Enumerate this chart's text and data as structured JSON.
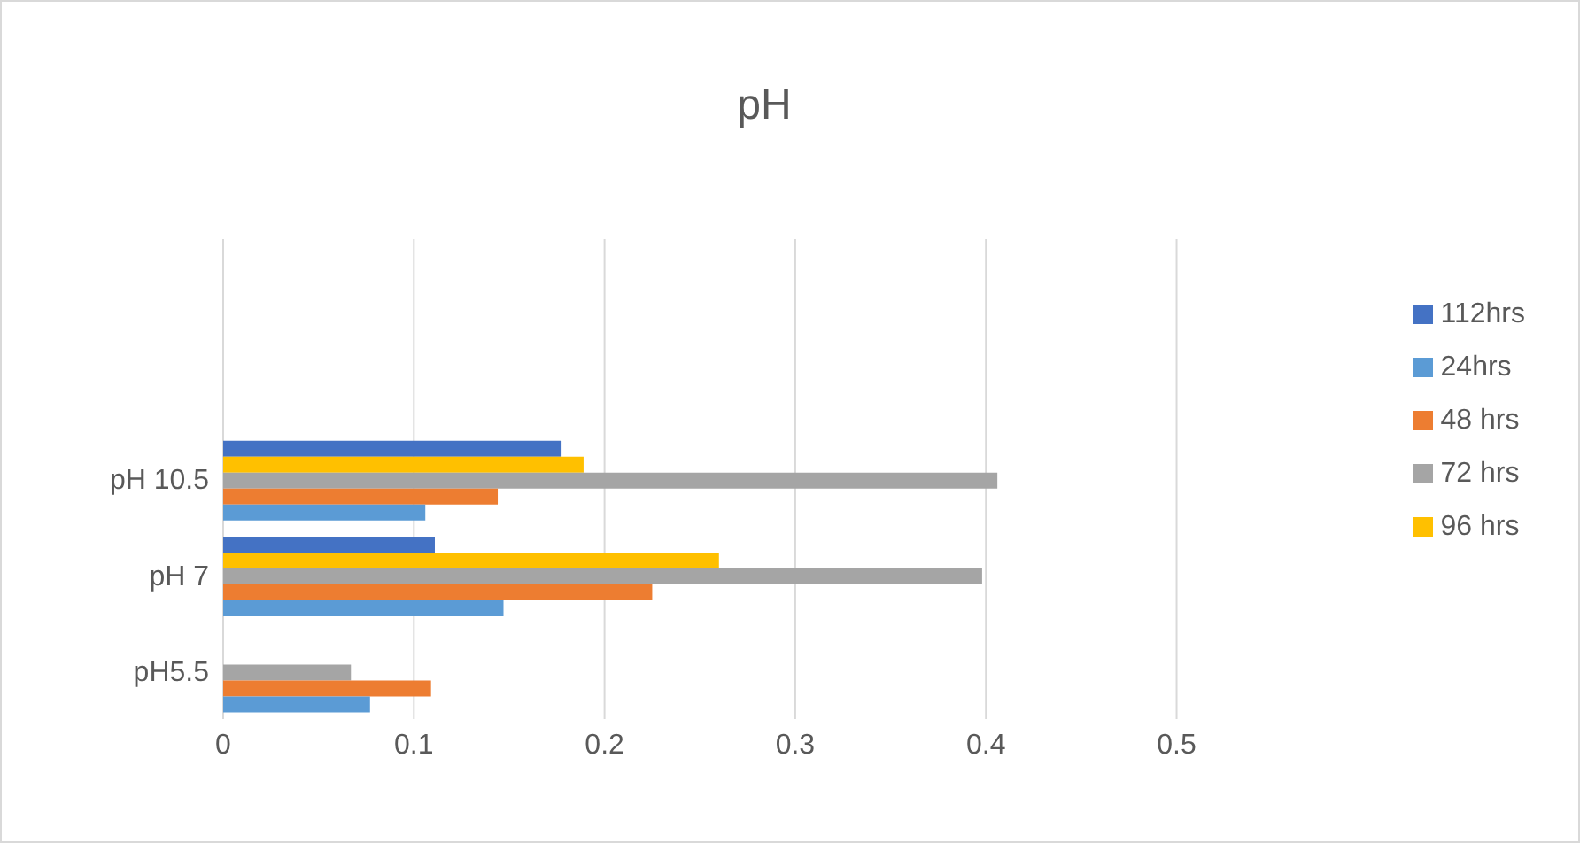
{
  "chart_data": {
    "type": "bar",
    "orientation": "horizontal",
    "title": "pH",
    "categories": [
      null,
      null,
      "pH 10.5",
      "pH 7",
      "pH5.5"
    ],
    "series": [
      {
        "name": "112hrs",
        "color": "#4472c4",
        "values": [
          null,
          null,
          0.177,
          0.111,
          null
        ]
      },
      {
        "name": "96 hrs",
        "color": "#ffc000",
        "values": [
          null,
          null,
          0.189,
          0.26,
          null
        ]
      },
      {
        "name": "72 hrs",
        "color": "#a5a5a5",
        "values": [
          null,
          null,
          0.406,
          0.398,
          0.067
        ]
      },
      {
        "name": "48 hrs",
        "color": "#ed7d31",
        "values": [
          null,
          null,
          0.144,
          0.225,
          0.109
        ]
      },
      {
        "name": "24hrs",
        "color": "#5b9bd5",
        "values": [
          null,
          null,
          0.106,
          0.147,
          0.077
        ]
      }
    ],
    "xlim": [
      0,
      0.5
    ],
    "xticks": [
      0,
      0.1,
      0.2,
      0.3,
      0.4,
      0.5
    ],
    "grid": "x",
    "legend": "right"
  }
}
